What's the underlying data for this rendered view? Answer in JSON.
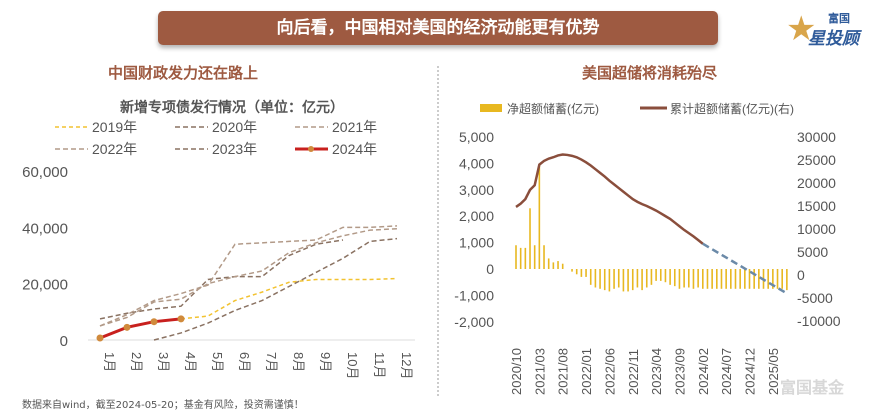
{
  "banner": "向后看，中国相对美国的经济动能更有优势",
  "logo": {
    "top": "富国",
    "bottom": "星投顾"
  },
  "left_subtitle": "中国财政发力还在路上",
  "right_subtitle": "美国超储将消耗殆尽",
  "footer": "数据来自wind，截至2024-05-20；基金有风险，投资需谨慎！",
  "watermark": "富国基金",
  "colors": {
    "accent": "#9e5a41",
    "y2019": "#f2c230",
    "dashed": "#b29a88",
    "dashed_dark": "#8a7262",
    "y2024": "#c8201e",
    "marker": "#d08a3c",
    "bar": "#e8b820",
    "cum": "#8a4e3c",
    "proj": "#6b8aa8"
  },
  "chart_data": [
    {
      "type": "line",
      "title": "新增专项债发行情况（单位：亿元）",
      "ylim": [
        0,
        60000
      ],
      "yticks": [
        "0",
        "20,000",
        "40,000",
        "60,000"
      ],
      "ytick_values": [
        0,
        20000,
        40000,
        60000
      ],
      "categories": [
        "1月",
        "2月",
        "3月",
        "4月",
        "5月",
        "6月",
        "7月",
        "8月",
        "9月",
        "10月",
        "11月",
        "12月"
      ],
      "series": [
        {
          "name": "2019年",
          "values": [
            null,
            null,
            null,
            7500,
            8500,
            14000,
            17000,
            20500,
            21500,
            21500,
            21500,
            21800
          ]
        },
        {
          "name": "2020年",
          "values": [
            7500,
            9500,
            11000,
            12000,
            21500,
            22500,
            22500,
            30000,
            34000,
            35500,
            null,
            null
          ]
        },
        {
          "name": "2021年",
          "values": [
            5000,
            8000,
            13500,
            14500,
            20000,
            22500,
            24500,
            31000,
            34500,
            37000,
            39000,
            39500
          ]
        },
        {
          "name": "2022年",
          "values": [
            5000,
            9000,
            14000,
            16500,
            19500,
            34000,
            34500,
            35000,
            35500,
            40000,
            40000,
            40500
          ]
        },
        {
          "name": "2023年",
          "values": [
            null,
            null,
            0,
            2500,
            6000,
            10500,
            14000,
            19000,
            24000,
            29000,
            35000,
            36000
          ]
        },
        {
          "name": "2024年",
          "values": [
            700,
            4500,
            6500,
            7500,
            null,
            null,
            null,
            null,
            null,
            null,
            null,
            null
          ]
        }
      ]
    },
    {
      "type": "bar+line",
      "legend": [
        "净超额储蓄(亿元)",
        "累计超额储蓄(亿元)(右)"
      ],
      "ylim_left": [
        -2000,
        5000
      ],
      "ylim_right": [
        -10000,
        30000
      ],
      "yticks_left": [
        "-2,000",
        "-1,000",
        "0",
        "1,000",
        "2,000",
        "3,000",
        "4,000",
        "5,000"
      ],
      "yticks_right": [
        "-10000",
        "-5000",
        "0",
        "5000",
        "10000",
        "15000",
        "20000",
        "25000",
        "30000"
      ],
      "xticks": [
        "2020/10",
        "2021/03",
        "2021/08",
        "2022/01",
        "2022/06",
        "2022/11",
        "2023/04",
        "2023/09",
        "2024/02",
        "2024/07",
        "2024/12",
        "2025/05"
      ],
      "bars": [
        900,
        800,
        800,
        2300,
        900,
        3900,
        900,
        400,
        250,
        300,
        200,
        0,
        -100,
        -200,
        -300,
        -300,
        -600,
        -700,
        -750,
        -800,
        -850,
        -750,
        -700,
        -850,
        -850,
        -800,
        -700,
        -800,
        -700,
        -600,
        -450,
        -450,
        -500,
        -600,
        -650,
        -750,
        -700,
        -700,
        -750,
        -700,
        -750,
        -750,
        -750,
        -750,
        -750,
        -750,
        -750,
        -750,
        -750,
        -750,
        -750,
        -750,
        -750,
        -750,
        -750,
        -750,
        -750,
        -750,
        -800
      ],
      "cumulative": [
        14800,
        15500,
        16500,
        18500,
        19500,
        24000,
        24800,
        25300,
        25600,
        26000,
        26200,
        26100,
        25900,
        25600,
        25100,
        24500,
        23800,
        23000,
        22200,
        21400,
        20500,
        19700,
        18900,
        18100,
        17300,
        16500,
        15900,
        15400,
        15000,
        14500,
        14000,
        13400,
        12800,
        12200,
        11400,
        10600,
        9800,
        9100,
        8400,
        7600,
        6800
      ],
      "projection": {
        "start_index": 40,
        "start": 6800,
        "end_index": 58,
        "end": -4000
      }
    }
  ]
}
